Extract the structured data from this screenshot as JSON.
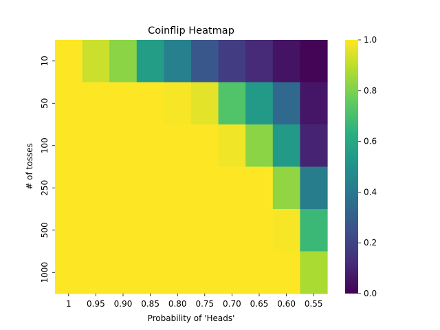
{
  "chart_data": {
    "type": "heatmap",
    "title": "Coinflip Heatmap",
    "xlabel": "Probability of 'Heads'",
    "ylabel": "# of tosses",
    "x_categories": [
      "1",
      "0.95",
      "0.90",
      "0.85",
      "0.80",
      "0.75",
      "0.70",
      "0.65",
      "0.60",
      "0.55"
    ],
    "y_categories": [
      "10",
      "50",
      "100",
      "250",
      "500",
      "1000"
    ],
    "values": [
      [
        1.0,
        0.92,
        0.82,
        0.55,
        0.43,
        0.27,
        0.18,
        0.12,
        0.05,
        0.01
      ],
      [
        1.0,
        1.0,
        1.0,
        1.0,
        0.99,
        0.96,
        0.72,
        0.54,
        0.34,
        0.06
      ],
      [
        1.0,
        1.0,
        1.0,
        1.0,
        1.0,
        1.0,
        0.98,
        0.82,
        0.54,
        0.1
      ],
      [
        1.0,
        1.0,
        1.0,
        1.0,
        1.0,
        1.0,
        1.0,
        1.0,
        0.83,
        0.42
      ],
      [
        1.0,
        1.0,
        1.0,
        1.0,
        1.0,
        1.0,
        1.0,
        1.0,
        0.99,
        0.67
      ],
      [
        1.0,
        1.0,
        1.0,
        1.0,
        1.0,
        1.0,
        1.0,
        1.0,
        1.0,
        0.87
      ]
    ],
    "vmin": 0.0,
    "vmax": 1.0,
    "colormap": "viridis",
    "colorbar_ticks": [
      "0.0",
      "0.2",
      "0.4",
      "0.6",
      "0.8",
      "1.0"
    ]
  }
}
